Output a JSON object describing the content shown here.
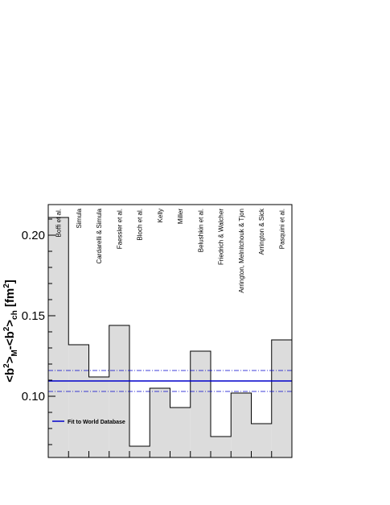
{
  "chart_data": {
    "type": "bar",
    "title": "",
    "xlabel": "",
    "ylabel": "<b²>M-<b²>ch [fm²]",
    "ylim": [
      0.062,
      0.219
    ],
    "yticks": [
      "0.10",
      "0.15",
      "0.20"
    ],
    "ytick_values": [
      0.1,
      0.15,
      0.2
    ],
    "categories": [
      "Boffi et al.",
      "Simula",
      "Cardarelli & Simula",
      "Faessler et al.",
      "Bloch et al.",
      "Kelly",
      "Miller",
      "Belushkin et al.",
      "Friedrich & Walcher",
      "Arrington, Melnitchouk & Tjon",
      "Arrington & Sick",
      "Pasquini et al."
    ],
    "values": [
      0.211,
      0.132,
      0.112,
      0.144,
      0.069,
      0.105,
      0.093,
      0.128,
      0.075,
      0.102,
      0.083,
      0.135
    ],
    "fit": {
      "name": "Fit to World Database",
      "value": 0.1095,
      "lower": 0.103,
      "upper": 0.116,
      "color": "#0000cc"
    },
    "bar_fill": "#dcdcdc",
    "bar_stroke": "#000000",
    "legend_position": "lower-left",
    "grid": false
  }
}
